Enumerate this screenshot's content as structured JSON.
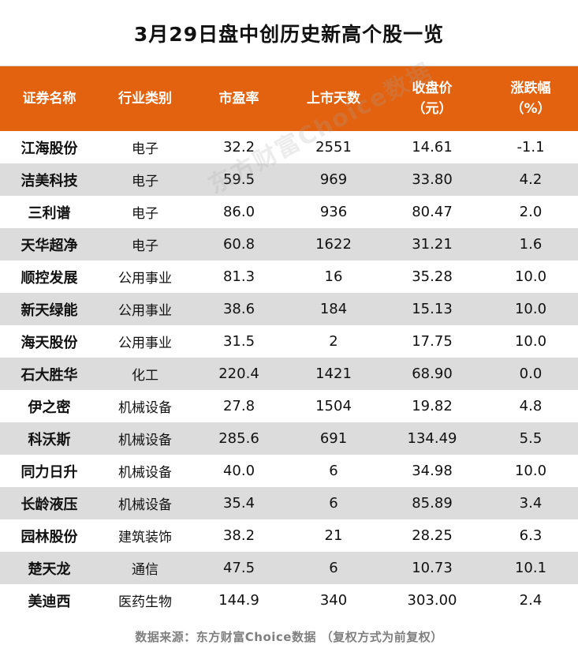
{
  "title": "3月29日盘中创历史新高个股一览",
  "table": {
    "headers": [
      {
        "line1": "证券名称",
        "line2": ""
      },
      {
        "line1": "行业类别",
        "line2": ""
      },
      {
        "line1": "市盈率",
        "line2": ""
      },
      {
        "line1": "上市天数",
        "line2": ""
      },
      {
        "line1": "收盘价",
        "line2": "（元）"
      },
      {
        "line1": "涨跌幅",
        "line2": "（%）"
      }
    ],
    "rows": [
      {
        "name": "江海股份",
        "industry": "电子",
        "pe": "32.2",
        "days": "2551",
        "close": "14.61",
        "change": "-1.1"
      },
      {
        "name": "洁美科技",
        "industry": "电子",
        "pe": "59.5",
        "days": "969",
        "close": "33.80",
        "change": "4.2"
      },
      {
        "name": "三利谱",
        "industry": "电子",
        "pe": "86.0",
        "days": "936",
        "close": "80.47",
        "change": "2.0"
      },
      {
        "name": "天华超净",
        "industry": "电子",
        "pe": "60.8",
        "days": "1622",
        "close": "31.21",
        "change": "1.6"
      },
      {
        "name": "顺控发展",
        "industry": "公用事业",
        "pe": "81.3",
        "days": "16",
        "close": "35.28",
        "change": "10.0"
      },
      {
        "name": "新天绿能",
        "industry": "公用事业",
        "pe": "38.6",
        "days": "184",
        "close": "15.13",
        "change": "10.0"
      },
      {
        "name": "海天股份",
        "industry": "公用事业",
        "pe": "31.5",
        "days": "2",
        "close": "17.75",
        "change": "10.0"
      },
      {
        "name": "石大胜华",
        "industry": "化工",
        "pe": "220.4",
        "days": "1421",
        "close": "68.90",
        "change": "0.0"
      },
      {
        "name": "伊之密",
        "industry": "机械设备",
        "pe": "27.8",
        "days": "1504",
        "close": "19.82",
        "change": "4.8"
      },
      {
        "name": "科沃斯",
        "industry": "机械设备",
        "pe": "285.6",
        "days": "691",
        "close": "134.49",
        "change": "5.5"
      },
      {
        "name": "同力日升",
        "industry": "机械设备",
        "pe": "40.0",
        "days": "6",
        "close": "34.98",
        "change": "10.0"
      },
      {
        "name": "长龄液压",
        "industry": "机械设备",
        "pe": "35.4",
        "days": "6",
        "close": "85.89",
        "change": "3.4"
      },
      {
        "name": "园林股份",
        "industry": "建筑装饰",
        "pe": "38.2",
        "days": "21",
        "close": "28.25",
        "change": "6.3"
      },
      {
        "name": "楚天龙",
        "industry": "通信",
        "pe": "47.5",
        "days": "6",
        "close": "10.73",
        "change": "10.1"
      },
      {
        "name": "美迪西",
        "industry": "医药生物",
        "pe": "144.9",
        "days": "340",
        "close": "303.00",
        "change": "2.4"
      }
    ]
  },
  "watermark": "东方财富Choice数据",
  "footer": "数据来源：东方财富Choice数据 （复权方式为前复权）",
  "colors": {
    "header_bg": "#e2620f",
    "stripe_bg": "#dcdcdc",
    "footer_text": "#7f7f7f"
  }
}
